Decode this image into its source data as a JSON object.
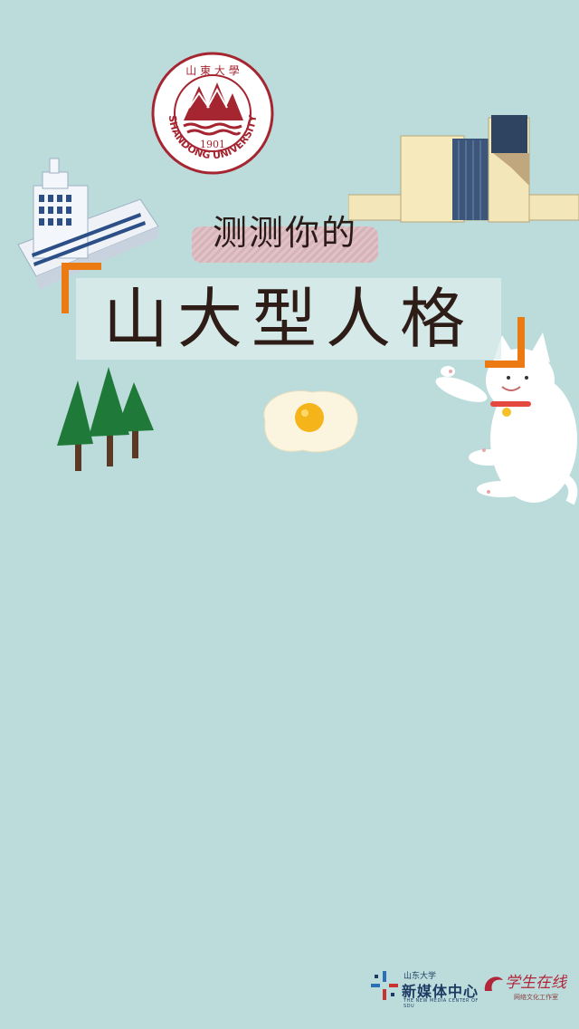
{
  "logo": {
    "top_text": "山 東 大 學",
    "ring_text": "SHANDONG UNIVERSITY",
    "year": "1901",
    "color": "#a52531"
  },
  "subtitle": "测测你的",
  "title": "山大型人格",
  "accent_color": "#ec7a13",
  "footer": {
    "org1_small": "山东大学",
    "org1_big": "新媒体中心",
    "org1_english": "THE NEW MEDIA CENTER OF SDU",
    "org2_script": "学生在线",
    "org2_sub": "网络文化工作室"
  }
}
